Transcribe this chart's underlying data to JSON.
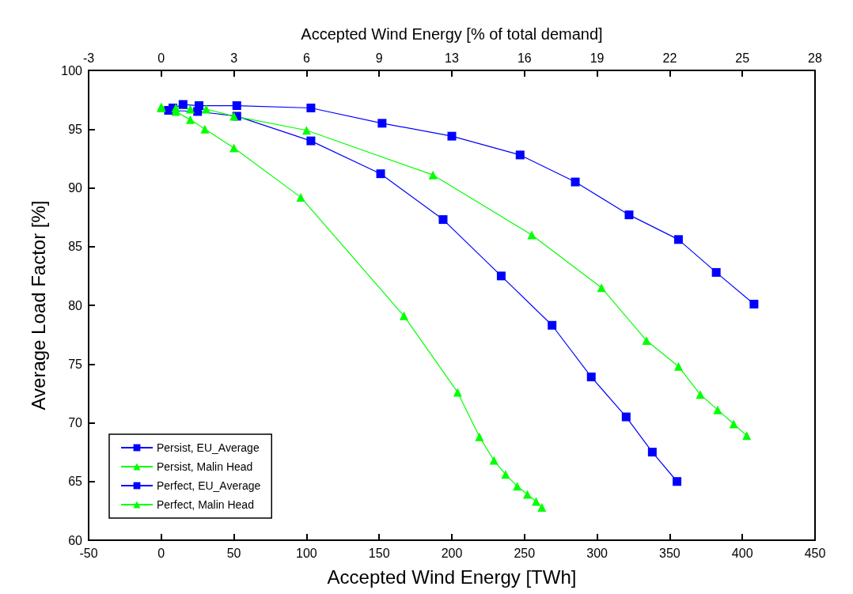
{
  "chart_data": {
    "type": "line",
    "xlabel": "Accepted Wind Energy [TWh]",
    "ylabel": "Average Load Factor [%]",
    "x2label": "Accepted Wind Energy [% of total demand]",
    "xlim": [
      -50,
      450
    ],
    "xticks": [
      -50,
      0,
      50,
      100,
      150,
      200,
      250,
      300,
      350,
      400,
      450
    ],
    "ylim": [
      60,
      100
    ],
    "yticks": [
      60,
      65,
      70,
      75,
      80,
      85,
      90,
      95,
      100
    ],
    "x2lim": [
      -3.14,
      28.26
    ],
    "x2ticks": [
      {
        "value": -3.14,
        "label": "-3"
      },
      {
        "value": 0,
        "label": "0"
      },
      {
        "value": 3.14,
        "label": "3"
      },
      {
        "value": 6.28,
        "label": "6"
      },
      {
        "value": 9.42,
        "label": "9"
      },
      {
        "value": 12.56,
        "label": "13"
      },
      {
        "value": 15.7,
        "label": "16"
      },
      {
        "value": 18.84,
        "label": "19"
      },
      {
        "value": 21.98,
        "label": "22"
      },
      {
        "value": 25.12,
        "label": "25"
      },
      {
        "value": 28.26,
        "label": "28"
      }
    ],
    "grid": false,
    "legend": "bottom left",
    "series": [
      {
        "name": "Persist, EU_Average",
        "color": "#0000ff",
        "marker": "square",
        "x": [
          5,
          25,
          52,
          103,
          151,
          194,
          234,
          269,
          296,
          320,
          338,
          355
        ],
        "values": [
          96.6,
          96.5,
          96.1,
          94.0,
          91.2,
          87.3,
          82.5,
          78.3,
          73.9,
          70.5,
          67.5,
          65.0
        ]
      },
      {
        "name": "Persist, Malin Head",
        "color": "#00ff00",
        "marker": "triangle",
        "x": [
          0,
          10,
          20,
          30,
          50,
          96,
          167,
          204,
          219,
          229,
          237,
          245,
          252,
          258,
          262
        ],
        "values": [
          96.8,
          96.5,
          95.8,
          95.0,
          93.4,
          89.2,
          79.1,
          72.6,
          68.8,
          66.8,
          65.6,
          64.6,
          63.9,
          63.3,
          62.8
        ]
      },
      {
        "name": "Perfect, EU_Average",
        "color": "#0000ff",
        "marker": "square",
        "x": [
          8,
          15,
          26,
          52,
          103,
          152,
          200,
          247,
          285,
          322,
          356,
          382,
          408
        ],
        "values": [
          96.8,
          97.1,
          97.0,
          97.0,
          96.8,
          95.5,
          94.4,
          92.8,
          90.5,
          87.7,
          85.6,
          82.8,
          80.1
        ]
      },
      {
        "name": "Perfect, Malin Head",
        "color": "#00ff00",
        "marker": "triangle",
        "x": [
          0,
          10,
          20,
          31,
          50,
          100,
          187,
          255,
          303,
          334,
          356,
          371,
          383,
          394,
          403
        ],
        "values": [
          96.9,
          96.8,
          96.7,
          96.7,
          96.1,
          94.9,
          91.1,
          86.0,
          81.5,
          77.0,
          74.8,
          72.4,
          71.1,
          69.9,
          68.9
        ]
      }
    ]
  }
}
